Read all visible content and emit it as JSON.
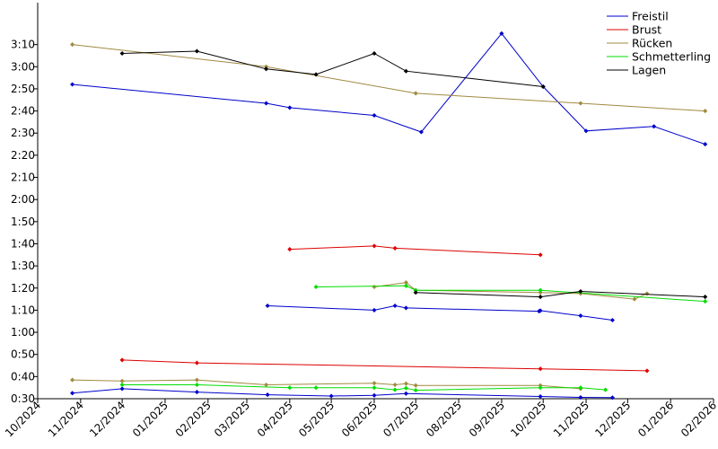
{
  "chart_data": {
    "type": "line",
    "title": "",
    "xlabel": "",
    "ylabel": "",
    "x_axis": {
      "type": "date",
      "range": [
        "2024-10-01",
        "2026-02-01"
      ],
      "tick_labels": [
        "10/2024",
        "11/2024",
        "12/2024",
        "01/2025",
        "02/2025",
        "03/2025",
        "04/2025",
        "05/2025",
        "06/2025",
        "07/2025",
        "08/2025",
        "09/2025",
        "10/2025",
        "11/2025",
        "12/2025",
        "01/2026",
        "02/2026"
      ]
    },
    "y_axis": {
      "unit": "seconds",
      "range": [
        30,
        200
      ],
      "tick_labels": [
        "0:30",
        "0:40",
        "0:50",
        "1:00",
        "1:10",
        "1:20",
        "1:30",
        "1:40",
        "1:50",
        "2:00",
        "2:10",
        "2:20",
        "2:30",
        "2:40",
        "2:50",
        "3:00",
        "3:10"
      ]
    },
    "grid": false,
    "legend_position": "top-right",
    "legend": [
      {
        "name": "Freistil",
        "color": "#0000cc"
      },
      {
        "name": "Brust",
        "color": "#dd0000"
      },
      {
        "name": "Rücken",
        "color": "#a08a40"
      },
      {
        "name": "Schmetterling",
        "color": "#00dd00"
      },
      {
        "name": "Lagen",
        "color": "#000000"
      }
    ],
    "series": [
      {
        "name": "Freistil",
        "color": "#0000cc",
        "points": [
          {
            "x": "2024-10-26",
            "y": 172
          },
          {
            "x": "2025-03-15",
            "y": 163.5
          },
          {
            "x": "2025-04-01",
            "y": 161.5
          },
          {
            "x": "2025-06-01",
            "y": 158
          },
          {
            "x": "2025-07-05",
            "y": 150.5
          },
          {
            "x": "2025-09-01",
            "y": 195
          },
          {
            "x": "2025-10-01",
            "y": 171
          },
          {
            "x": "2025-11-01",
            "y": 151
          },
          {
            "x": "2025-12-20",
            "y": 153
          },
          {
            "x": "2026-01-26",
            "y": 145
          }
        ]
      },
      {
        "name": "Freistil",
        "color": "#0000cc",
        "points": [
          {
            "x": "2025-03-16",
            "y": 72
          },
          {
            "x": "2025-06-01",
            "y": 70
          },
          {
            "x": "2025-06-16",
            "y": 72
          },
          {
            "x": "2025-06-24",
            "y": 71
          },
          {
            "x": "2025-09-28",
            "y": 69.5
          },
          {
            "x": "2025-09-29",
            "y": 69.8
          },
          {
            "x": "2025-10-28",
            "y": 67.5
          },
          {
            "x": "2025-11-20",
            "y": 65.5
          }
        ]
      },
      {
        "name": "Freistil",
        "color": "#0000cc",
        "points": [
          {
            "x": "2024-10-26",
            "y": 32.5
          },
          {
            "x": "2024-12-01",
            "y": 34.5
          },
          {
            "x": "2025-01-24",
            "y": 33
          },
          {
            "x": "2025-03-16",
            "y": 31.8
          },
          {
            "x": "2025-05-01",
            "y": 31.2
          },
          {
            "x": "2025-06-01",
            "y": 31.5
          },
          {
            "x": "2025-06-24",
            "y": 32.3
          },
          {
            "x": "2025-09-29",
            "y": 31
          },
          {
            "x": "2025-10-28",
            "y": 30.6
          },
          {
            "x": "2025-11-20",
            "y": 30.5
          }
        ]
      },
      {
        "name": "Brust",
        "color": "#dd0000",
        "points": [
          {
            "x": "2025-04-01",
            "y": 97.5
          },
          {
            "x": "2025-06-01",
            "y": 99
          },
          {
            "x": "2025-06-16",
            "y": 98
          },
          {
            "x": "2025-09-29",
            "y": 95
          }
        ]
      },
      {
        "name": "Brust",
        "color": "#dd0000",
        "points": [
          {
            "x": "2024-12-01",
            "y": 47.5
          },
          {
            "x": "2025-01-24",
            "y": 46.2
          },
          {
            "x": "2025-09-29",
            "y": 43.5
          },
          {
            "x": "2025-12-15",
            "y": 42.6
          }
        ]
      },
      {
        "name": "Rücken",
        "color": "#a08a40",
        "points": [
          {
            "x": "2024-10-26",
            "y": 190
          },
          {
            "x": "2025-03-15",
            "y": 180
          },
          {
            "x": "2025-07-01",
            "y": 168
          },
          {
            "x": "2025-10-28",
            "y": 163.5
          },
          {
            "x": "2026-01-26",
            "y": 160
          }
        ]
      },
      {
        "name": "Rücken",
        "color": "#a08a40",
        "points": [
          {
            "x": "2025-06-01",
            "y": 80.5
          },
          {
            "x": "2025-06-24",
            "y": 82.5
          },
          {
            "x": "2025-07-01",
            "y": 79
          },
          {
            "x": "2025-09-29",
            "y": 78
          },
          {
            "x": "2025-10-28",
            "y": 77.5
          },
          {
            "x": "2025-12-06",
            "y": 75
          },
          {
            "x": "2025-12-15",
            "y": 77.5
          }
        ]
      },
      {
        "name": "Rücken",
        "color": "#a08a40",
        "points": [
          {
            "x": "2024-10-26",
            "y": 38.5
          },
          {
            "x": "2024-12-01",
            "y": 38
          },
          {
            "x": "2025-01-24",
            "y": 38.5
          },
          {
            "x": "2025-03-15",
            "y": 36.3
          },
          {
            "x": "2025-06-01",
            "y": 37
          },
          {
            "x": "2025-06-16",
            "y": 36.3
          },
          {
            "x": "2025-06-24",
            "y": 36.8
          },
          {
            "x": "2025-07-01",
            "y": 36
          },
          {
            "x": "2025-09-29",
            "y": 36
          },
          {
            "x": "2025-10-28",
            "y": 34.5
          }
        ]
      },
      {
        "name": "Schmetterling",
        "color": "#00dd00",
        "points": [
          {
            "x": "2025-04-20",
            "y": 80.5
          },
          {
            "x": "2025-06-24",
            "y": 81
          },
          {
            "x": "2025-07-01",
            "y": 79
          },
          {
            "x": "2025-09-29",
            "y": 79
          },
          {
            "x": "2026-01-26",
            "y": 74
          }
        ]
      },
      {
        "name": "Schmetterling",
        "color": "#00dd00",
        "points": [
          {
            "x": "2024-12-01",
            "y": 36.3
          },
          {
            "x": "2025-01-24",
            "y": 36.3
          },
          {
            "x": "2025-04-01",
            "y": 35
          },
          {
            "x": "2025-04-20",
            "y": 35
          },
          {
            "x": "2025-06-01",
            "y": 35
          },
          {
            "x": "2025-06-16",
            "y": 34
          },
          {
            "x": "2025-06-24",
            "y": 34.8
          },
          {
            "x": "2025-07-01",
            "y": 33.8
          },
          {
            "x": "2025-09-29",
            "y": 35
          },
          {
            "x": "2025-10-28",
            "y": 35
          },
          {
            "x": "2025-11-15",
            "y": 34
          }
        ]
      },
      {
        "name": "Lagen",
        "color": "#000000",
        "points": [
          {
            "x": "2024-12-01",
            "y": 186
          },
          {
            "x": "2025-01-24",
            "y": 187
          },
          {
            "x": "2025-03-15",
            "y": 179
          },
          {
            "x": "2025-04-20",
            "y": 176.5
          },
          {
            "x": "2025-06-01",
            "y": 186
          },
          {
            "x": "2025-06-24",
            "y": 178
          },
          {
            "x": "2025-10-01",
            "y": 171
          }
        ]
      },
      {
        "name": "Lagen",
        "color": "#000000",
        "points": [
          {
            "x": "2025-07-01",
            "y": 78
          },
          {
            "x": "2025-09-29",
            "y": 76
          },
          {
            "x": "2025-10-28",
            "y": 78.5
          },
          {
            "x": "2026-01-26",
            "y": 76
          }
        ]
      }
    ]
  }
}
